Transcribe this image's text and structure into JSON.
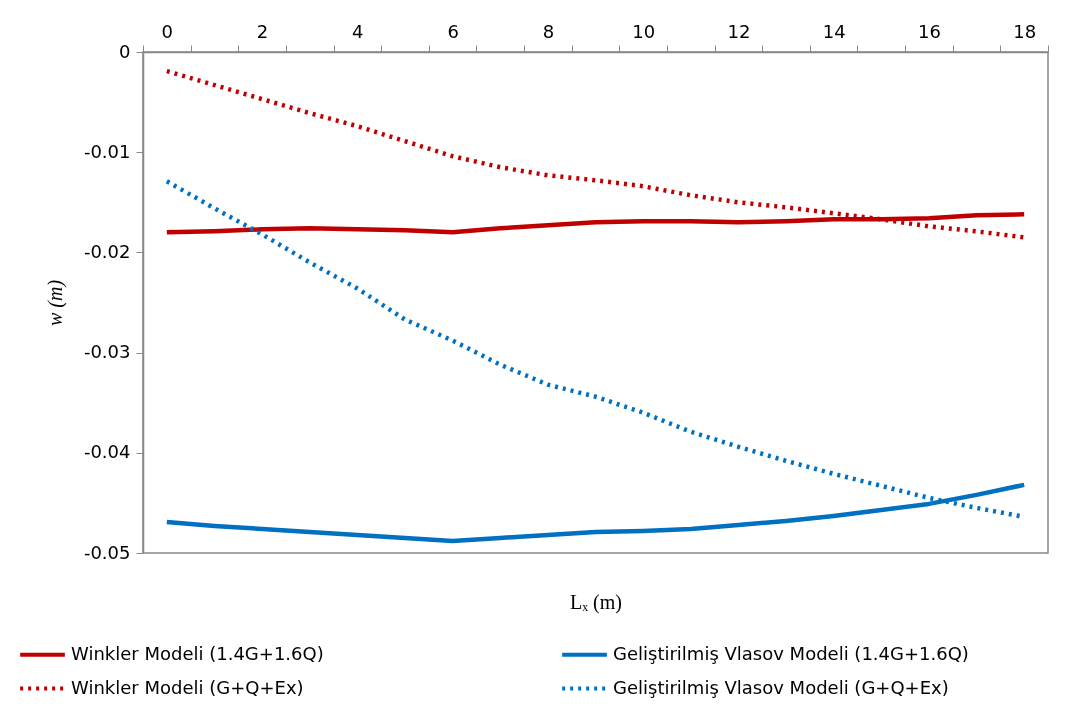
{
  "chart_data": {
    "type": "line",
    "xlabel": "Lₓ (m)",
    "ylabel": "w (m)",
    "categories": [
      "0",
      null,
      "2",
      null,
      "4",
      null,
      "6",
      null,
      "8",
      null,
      "10",
      null,
      "12",
      null,
      "14",
      null,
      "16",
      null,
      "18"
    ],
    "ylim": [
      -0.05,
      0
    ],
    "yticks": [
      0,
      -0.01,
      -0.02,
      -0.03,
      -0.04,
      -0.05
    ],
    "legend": "bottom",
    "series": [
      {
        "name": "Winkler Modeli (1.4G+1.6Q)",
        "color": "#c00000",
        "line_style": "solid",
        "values": [
          -0.018,
          -0.0179,
          -0.0177,
          -0.0176,
          -0.0177,
          -0.0178,
          -0.018,
          -0.0176,
          -0.0173,
          -0.017,
          -0.0169,
          -0.0169,
          -0.017,
          -0.0169,
          -0.0167,
          -0.0167,
          -0.0166,
          -0.0163,
          -0.0162
        ]
      },
      {
        "name": "Winkler Modeli (G+Q+Ex)",
        "color": "#c00000",
        "line_style": "dotted",
        "values": [
          -0.0019,
          -0.0033,
          -0.0047,
          -0.0061,
          -0.0074,
          -0.0089,
          -0.0104,
          -0.0115,
          -0.0123,
          -0.0128,
          -0.0134,
          -0.0143,
          -0.015,
          -0.0155,
          -0.0161,
          -0.0167,
          -0.0174,
          -0.0179,
          -0.0185
        ]
      },
      {
        "name": "Geliştirilmiş Vlasov Modeli (1.4G+1.6Q)",
        "color": "#0070c0",
        "line_style": "solid",
        "values": [
          -0.0469,
          -0.0473,
          -0.0476,
          -0.0479,
          -0.0482,
          -0.0485,
          -0.0488,
          -0.0485,
          -0.0482,
          -0.0479,
          -0.0478,
          -0.0476,
          -0.0472,
          -0.0468,
          -0.0463,
          -0.0457,
          -0.0451,
          -0.0442,
          -0.0432
        ]
      },
      {
        "name": "Geliştirilmiş Vlasov Modeli (G+Q+Ex)",
        "color": "#0070c0",
        "line_style": "dotted",
        "values": [
          -0.0129,
          -0.0156,
          -0.0182,
          -0.021,
          -0.0236,
          -0.0267,
          -0.0288,
          -0.0312,
          -0.0332,
          -0.0344,
          -0.036,
          -0.0379,
          -0.0394,
          -0.0408,
          -0.0421,
          -0.0433,
          -0.0445,
          -0.0455,
          -0.0464
        ]
      }
    ]
  }
}
